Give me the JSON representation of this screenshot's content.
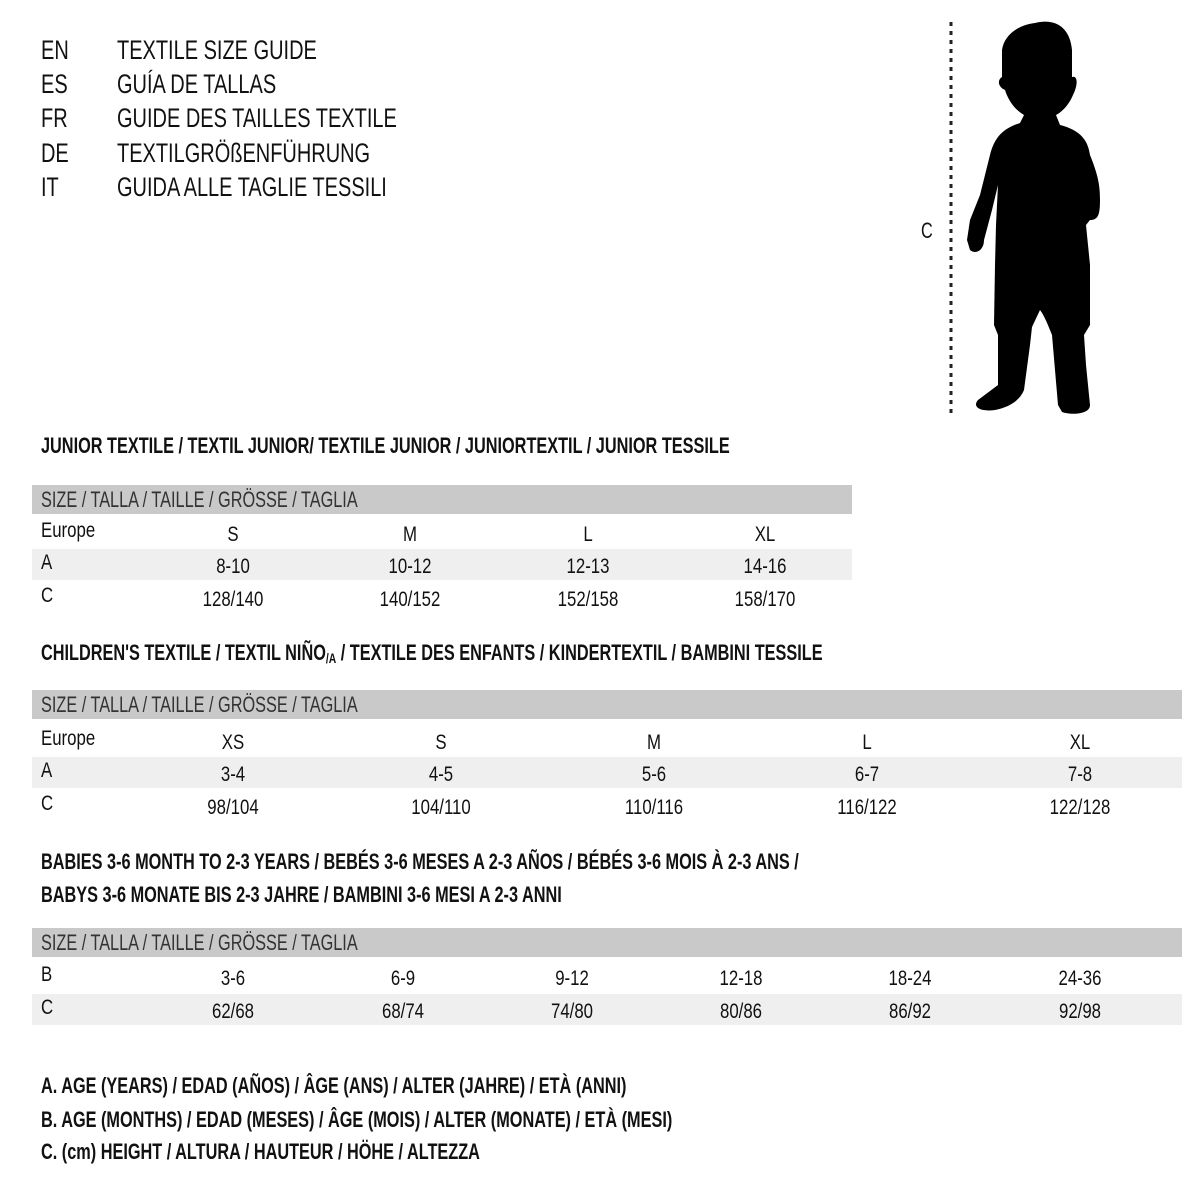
{
  "languages": [
    {
      "code": "EN",
      "label": "TEXTILE SIZE GUIDE"
    },
    {
      "code": "ES",
      "label": "GUÍA DE TALLAS"
    },
    {
      "code": "FR",
      "label": "GUIDE DES TAILLES TEXTILE"
    },
    {
      "code": "DE",
      "label": "TEXTILGRÖßENFÜHRUNG"
    },
    {
      "code": "IT",
      "label": "GUIDA ALLE TAGLIE TESSILI"
    }
  ],
  "figure": {
    "measure_label": "C",
    "icon": "child-silhouette-icon"
  },
  "colors": {
    "header_band": "#c9c9c9",
    "shaded_row": "#efefef"
  },
  "junior": {
    "title": "JUNIOR TEXTILE / TEXTIL JUNIOR/ TEXTILE JUNIOR / JUNIORTEXTIL / JUNIOR TESSILE",
    "header": "SIZE / TALLA / TAILLE / GRÖSSE / TAGLIA",
    "rows": [
      {
        "label": "Europe",
        "values": [
          "S",
          "M",
          "L",
          "XL"
        ]
      },
      {
        "label": "A",
        "values": [
          "8-10",
          "10-12",
          "12-13",
          "14-16"
        ]
      },
      {
        "label": "C",
        "values": [
          "128/140",
          "140/152",
          "152/158",
          "158/170"
        ]
      }
    ]
  },
  "children": {
    "title_pre": "CHILDREN'S TEXTILE / TEXTIL NIÑO",
    "title_sub": "/A",
    "title_post": " / TEXTILE DES ENFANTS / KINDERTEXTIL / BAMBINI TESSILE",
    "header": "SIZE / TALLA / TAILLE / GRÖSSE / TAGLIA",
    "rows": [
      {
        "label": "Europe",
        "values": [
          "XS",
          "S",
          "M",
          "L",
          "XL"
        ]
      },
      {
        "label": "A",
        "values": [
          "3-4",
          "4-5",
          "5-6",
          "6-7",
          "7-8"
        ]
      },
      {
        "label": "C",
        "values": [
          "98/104",
          "104/110",
          "110/116",
          "116/122",
          "122/128"
        ]
      }
    ]
  },
  "babies": {
    "title_line1": "BABIES 3-6 MONTH TO 2-3 YEARS / BEBÉS 3-6 MESES A 2-3 AÑOS / BÉBÉS 3-6 MOIS À 2-3 ANS /",
    "title_line2": "BABYS 3-6 MONATE BIS 2-3 JAHRE / BAMBINI 3-6 MESI A 2-3 ANNI",
    "header": "SIZE / TALLA / TAILLE / GRÖSSE / TAGLIA",
    "rows": [
      {
        "label": "B",
        "values": [
          "3-6",
          "6-9",
          "9-12",
          "12-18",
          "18-24",
          "24-36"
        ]
      },
      {
        "label": "C",
        "values": [
          "62/68",
          "68/74",
          "74/80",
          "80/86",
          "86/92",
          "92/98"
        ]
      }
    ]
  },
  "legend": [
    "A. AGE (YEARS) / EDAD (AÑOS) / ÂGE (ANS) / ALTER (JAHRE) / ETÀ (ANNI)",
    "B. AGE (MONTHS) / EDAD (MESES) / ÂGE (MOIS) / ALTER (MONATE) / ETÀ (MESI)",
    "C. (cm) HEIGHT / ALTURA / HAUTEUR / HÖHE / ALTEZZA"
  ]
}
